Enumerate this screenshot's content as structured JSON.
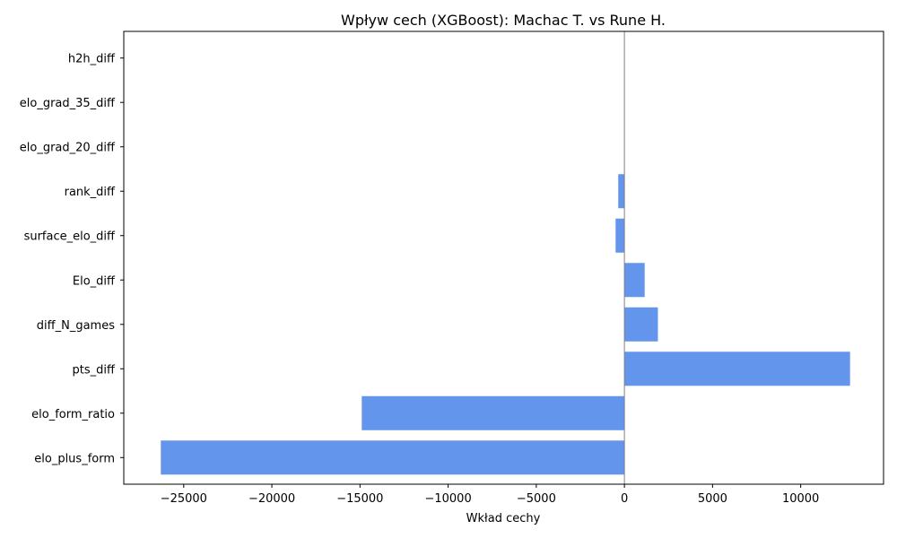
{
  "chart_data": {
    "type": "bar",
    "orientation": "horizontal",
    "title": "Wpływ cech (XGBoost): Machac T. vs Rune H.",
    "xlabel": "Wkład cechy",
    "ylabel": "",
    "categories": [
      "elo_plus_form",
      "elo_form_ratio",
      "pts_diff",
      "diff_N_games",
      "Elo_diff",
      "surface_elo_diff",
      "rank_diff",
      "elo_grad_20_diff",
      "elo_grad_35_diff",
      "h2h_diff"
    ],
    "values": [
      -26300,
      -14900,
      12800,
      1900,
      1150,
      -500,
      -350,
      0,
      0,
      0
    ],
    "xlim": [
      -28400,
      14700
    ],
    "xticks": [
      -25000,
      -20000,
      -15000,
      -10000,
      -5000,
      0,
      5000,
      10000
    ],
    "xtick_labels": [
      "−25000",
      "−20000",
      "−15000",
      "−10000",
      "−5000",
      "0",
      "5000",
      "10000"
    ],
    "bar_color": "#6495ED",
    "zero_line_color": "#808080",
    "grid": false,
    "legend": "none"
  }
}
